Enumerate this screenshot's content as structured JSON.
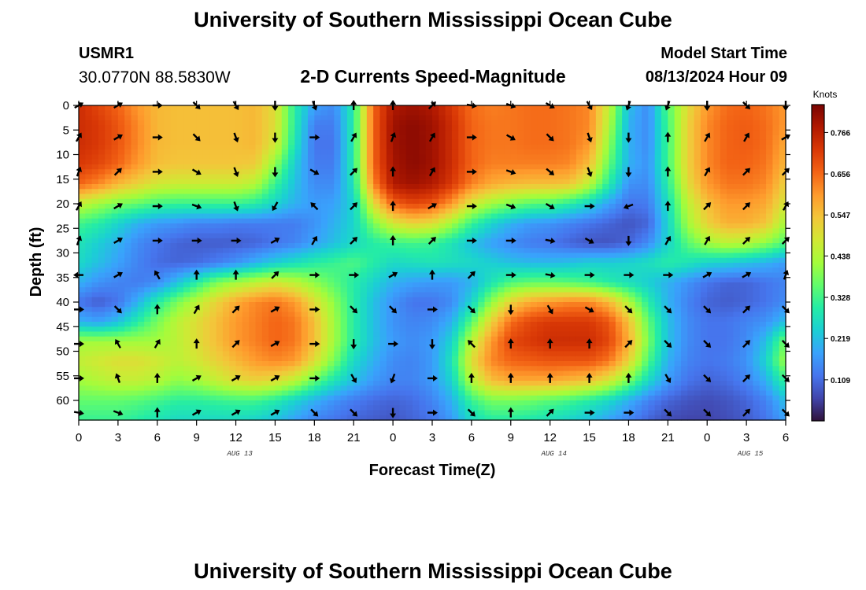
{
  "header": {
    "title": "University of Southern Mississippi Ocean Cube",
    "station_id": "USMR1",
    "coordinates": "30.0770N  88.5830W",
    "subtitle": "2-D Currents Speed-Magnitude",
    "model_start_label": "Model Start Time",
    "model_start_value": "08/13/2024 Hour 09"
  },
  "footer": {
    "title": "University of Southern Mississippi Ocean Cube"
  },
  "chart_data": {
    "type": "heatmap",
    "title": "2-D Currents Speed-Magnitude",
    "xlabel": "Forecast Time(Z)",
    "ylabel": "Depth (ft)",
    "x_range_hours": [
      0,
      54
    ],
    "y_range_ft": [
      0,
      64
    ],
    "x_ticks": [
      {
        "h": 0,
        "label": "0"
      },
      {
        "h": 3,
        "label": "3"
      },
      {
        "h": 6,
        "label": "6"
      },
      {
        "h": 9,
        "label": "9"
      },
      {
        "h": 12,
        "label": "12"
      },
      {
        "h": 15,
        "label": "15"
      },
      {
        "h": 18,
        "label": "18"
      },
      {
        "h": 21,
        "label": "21"
      },
      {
        "h": 24,
        "label": "0"
      },
      {
        "h": 27,
        "label": "3"
      },
      {
        "h": 30,
        "label": "6"
      },
      {
        "h": 33,
        "label": "9"
      },
      {
        "h": 36,
        "label": "12"
      },
      {
        "h": 39,
        "label": "15"
      },
      {
        "h": 42,
        "label": "18"
      },
      {
        "h": 45,
        "label": "21"
      },
      {
        "h": 48,
        "label": "0"
      },
      {
        "h": 51,
        "label": "3"
      },
      {
        "h": 54,
        "label": "6"
      }
    ],
    "y_ticks": [
      0,
      5,
      10,
      15,
      20,
      25,
      30,
      35,
      40,
      45,
      50,
      55,
      60
    ],
    "date_labels": [
      {
        "h": 12,
        "label": "AUG 13"
      },
      {
        "h": 36,
        "label": "AUG 14"
      },
      {
        "h": 51,
        "label": "AUG 15"
      }
    ],
    "colorbar": {
      "unit": "Knots",
      "range": [
        0.0,
        0.84
      ],
      "ticks": [
        0.766,
        0.656,
        0.547,
        0.438,
        0.328,
        0.219,
        0.109
      ],
      "colors": [
        "#30123b",
        "#4145ab",
        "#4675ed",
        "#39a2fc",
        "#1bcfd4",
        "#24eca6",
        "#61fc6c",
        "#a4fc3b",
        "#d1e834",
        "#f3c63a",
        "#fe9b2d",
        "#f36315",
        "#d93806",
        "#b11901",
        "#7a0402"
      ]
    },
    "speed_grid": {
      "hours": [
        0,
        1.5,
        3,
        4.5,
        6,
        7.5,
        9,
        10.5,
        12,
        13.5,
        15,
        16.5,
        18,
        19.5,
        21,
        22.5,
        24,
        25.5,
        27,
        28.5,
        30,
        31.5,
        33,
        34.5,
        36,
        37.5,
        39,
        40.5,
        42,
        43.5,
        45,
        46.5,
        48,
        49.5,
        51,
        52.5,
        54
      ],
      "depths_ft": [
        0,
        4,
        8,
        12,
        16,
        20,
        24,
        28,
        32,
        36,
        40,
        44,
        48,
        52,
        56,
        60,
        64
      ],
      "values_knots": [
        [
          0.74,
          0.7,
          0.66,
          0.6,
          0.56,
          0.55,
          0.55,
          0.55,
          0.55,
          0.56,
          0.5,
          0.3,
          0.18,
          0.15,
          0.3,
          0.66,
          0.78,
          0.8,
          0.78,
          0.72,
          0.65,
          0.63,
          0.64,
          0.65,
          0.65,
          0.64,
          0.62,
          0.46,
          0.22,
          0.15,
          0.35,
          0.5,
          0.6,
          0.65,
          0.66,
          0.64,
          0.6
        ],
        [
          0.74,
          0.72,
          0.68,
          0.62,
          0.56,
          0.55,
          0.55,
          0.55,
          0.55,
          0.56,
          0.5,
          0.3,
          0.13,
          0.13,
          0.3,
          0.66,
          0.8,
          0.82,
          0.8,
          0.74,
          0.66,
          0.64,
          0.64,
          0.65,
          0.65,
          0.64,
          0.62,
          0.44,
          0.2,
          0.15,
          0.33,
          0.52,
          0.62,
          0.66,
          0.67,
          0.65,
          0.6
        ],
        [
          0.74,
          0.72,
          0.68,
          0.62,
          0.56,
          0.55,
          0.55,
          0.55,
          0.55,
          0.56,
          0.48,
          0.28,
          0.12,
          0.12,
          0.3,
          0.66,
          0.8,
          0.82,
          0.8,
          0.74,
          0.66,
          0.64,
          0.64,
          0.65,
          0.65,
          0.64,
          0.6,
          0.4,
          0.2,
          0.15,
          0.33,
          0.52,
          0.62,
          0.66,
          0.67,
          0.65,
          0.58
        ],
        [
          0.72,
          0.7,
          0.66,
          0.6,
          0.55,
          0.54,
          0.54,
          0.54,
          0.54,
          0.53,
          0.4,
          0.24,
          0.13,
          0.13,
          0.3,
          0.66,
          0.79,
          0.82,
          0.8,
          0.74,
          0.66,
          0.63,
          0.63,
          0.63,
          0.63,
          0.62,
          0.55,
          0.36,
          0.2,
          0.16,
          0.33,
          0.52,
          0.62,
          0.66,
          0.66,
          0.64,
          0.56
        ],
        [
          0.66,
          0.62,
          0.56,
          0.52,
          0.48,
          0.47,
          0.47,
          0.47,
          0.47,
          0.44,
          0.32,
          0.22,
          0.15,
          0.15,
          0.28,
          0.62,
          0.78,
          0.8,
          0.78,
          0.72,
          0.63,
          0.58,
          0.56,
          0.55,
          0.55,
          0.54,
          0.45,
          0.3,
          0.16,
          0.15,
          0.3,
          0.5,
          0.6,
          0.64,
          0.64,
          0.62,
          0.52
        ],
        [
          0.46,
          0.42,
          0.38,
          0.36,
          0.33,
          0.32,
          0.32,
          0.32,
          0.32,
          0.3,
          0.25,
          0.2,
          0.17,
          0.18,
          0.25,
          0.5,
          0.66,
          0.7,
          0.68,
          0.6,
          0.48,
          0.42,
          0.38,
          0.35,
          0.34,
          0.3,
          0.25,
          0.18,
          0.12,
          0.13,
          0.27,
          0.45,
          0.55,
          0.6,
          0.6,
          0.58,
          0.48
        ],
        [
          0.33,
          0.3,
          0.25,
          0.2,
          0.17,
          0.16,
          0.14,
          0.14,
          0.13,
          0.13,
          0.13,
          0.13,
          0.16,
          0.2,
          0.25,
          0.38,
          0.48,
          0.52,
          0.5,
          0.42,
          0.32,
          0.25,
          0.2,
          0.17,
          0.16,
          0.14,
          0.12,
          0.1,
          0.08,
          0.1,
          0.25,
          0.42,
          0.52,
          0.57,
          0.57,
          0.54,
          0.42
        ],
        [
          0.28,
          0.24,
          0.2,
          0.15,
          0.12,
          0.1,
          0.09,
          0.09,
          0.09,
          0.1,
          0.12,
          0.14,
          0.18,
          0.22,
          0.26,
          0.3,
          0.32,
          0.33,
          0.32,
          0.28,
          0.22,
          0.18,
          0.15,
          0.13,
          0.12,
          0.1,
          0.08,
          0.08,
          0.1,
          0.15,
          0.25,
          0.35,
          0.42,
          0.45,
          0.44,
          0.4,
          0.34
        ],
        [
          0.26,
          0.22,
          0.18,
          0.14,
          0.11,
          0.1,
          0.11,
          0.13,
          0.16,
          0.2,
          0.24,
          0.27,
          0.3,
          0.32,
          0.34,
          0.3,
          0.26,
          0.27,
          0.28,
          0.27,
          0.26,
          0.24,
          0.22,
          0.21,
          0.21,
          0.22,
          0.24,
          0.24,
          0.25,
          0.27,
          0.3,
          0.28,
          0.25,
          0.24,
          0.22,
          0.2,
          0.17
        ],
        [
          0.2,
          0.16,
          0.14,
          0.13,
          0.15,
          0.22,
          0.3,
          0.38,
          0.42,
          0.45,
          0.48,
          0.45,
          0.4,
          0.35,
          0.3,
          0.25,
          0.2,
          0.18,
          0.17,
          0.17,
          0.2,
          0.28,
          0.34,
          0.36,
          0.36,
          0.35,
          0.33,
          0.3,
          0.27,
          0.24,
          0.2,
          0.16,
          0.12,
          0.1,
          0.1,
          0.12,
          0.14
        ],
        [
          0.12,
          0.09,
          0.12,
          0.2,
          0.3,
          0.38,
          0.45,
          0.52,
          0.58,
          0.62,
          0.64,
          0.6,
          0.5,
          0.4,
          0.3,
          0.22,
          0.16,
          0.12,
          0.12,
          0.15,
          0.25,
          0.4,
          0.52,
          0.58,
          0.6,
          0.62,
          0.62,
          0.56,
          0.44,
          0.3,
          0.2,
          0.14,
          0.1,
          0.09,
          0.1,
          0.12,
          0.15
        ],
        [
          0.2,
          0.18,
          0.22,
          0.3,
          0.38,
          0.45,
          0.5,
          0.55,
          0.6,
          0.63,
          0.66,
          0.64,
          0.55,
          0.42,
          0.3,
          0.22,
          0.16,
          0.14,
          0.15,
          0.2,
          0.35,
          0.52,
          0.65,
          0.7,
          0.72,
          0.72,
          0.72,
          0.68,
          0.55,
          0.36,
          0.22,
          0.15,
          0.12,
          0.12,
          0.14,
          0.16,
          0.22
        ],
        [
          0.42,
          0.42,
          0.42,
          0.42,
          0.42,
          0.45,
          0.5,
          0.55,
          0.6,
          0.63,
          0.66,
          0.64,
          0.55,
          0.42,
          0.3,
          0.22,
          0.17,
          0.15,
          0.17,
          0.25,
          0.45,
          0.6,
          0.7,
          0.72,
          0.74,
          0.74,
          0.74,
          0.7,
          0.58,
          0.38,
          0.22,
          0.15,
          0.12,
          0.12,
          0.15,
          0.22,
          0.38
        ],
        [
          0.46,
          0.48,
          0.5,
          0.5,
          0.48,
          0.45,
          0.48,
          0.52,
          0.56,
          0.6,
          0.62,
          0.6,
          0.5,
          0.38,
          0.26,
          0.2,
          0.15,
          0.14,
          0.17,
          0.28,
          0.5,
          0.62,
          0.66,
          0.67,
          0.68,
          0.68,
          0.68,
          0.64,
          0.52,
          0.34,
          0.2,
          0.14,
          0.12,
          0.13,
          0.16,
          0.25,
          0.42
        ],
        [
          0.42,
          0.44,
          0.46,
          0.46,
          0.44,
          0.4,
          0.42,
          0.46,
          0.5,
          0.52,
          0.5,
          0.45,
          0.36,
          0.28,
          0.22,
          0.17,
          0.14,
          0.14,
          0.17,
          0.25,
          0.44,
          0.55,
          0.58,
          0.58,
          0.58,
          0.56,
          0.54,
          0.48,
          0.38,
          0.26,
          0.17,
          0.12,
          0.1,
          0.11,
          0.14,
          0.2,
          0.32
        ],
        [
          0.36,
          0.36,
          0.36,
          0.35,
          0.33,
          0.31,
          0.31,
          0.32,
          0.33,
          0.33,
          0.3,
          0.25,
          0.2,
          0.16,
          0.13,
          0.11,
          0.1,
          0.11,
          0.14,
          0.2,
          0.32,
          0.38,
          0.38,
          0.37,
          0.35,
          0.33,
          0.3,
          0.26,
          0.2,
          0.14,
          0.1,
          0.08,
          0.07,
          0.08,
          0.1,
          0.14,
          0.22
        ],
        [
          0.32,
          0.32,
          0.32,
          0.3,
          0.28,
          0.26,
          0.26,
          0.26,
          0.26,
          0.25,
          0.22,
          0.18,
          0.14,
          0.12,
          0.1,
          0.09,
          0.08,
          0.1,
          0.12,
          0.17,
          0.26,
          0.3,
          0.3,
          0.29,
          0.27,
          0.25,
          0.22,
          0.18,
          0.14,
          0.1,
          0.07,
          0.06,
          0.06,
          0.07,
          0.09,
          0.12,
          0.18
        ]
      ]
    },
    "arrows": {
      "hours": [
        0,
        3,
        6,
        9,
        12,
        15,
        18,
        21,
        24,
        27,
        30,
        33,
        36,
        39,
        42,
        45,
        48,
        51,
        54
      ],
      "depths_ft": [
        0,
        6.5,
        13.5,
        20.5,
        27.5,
        34.5,
        41.5,
        48.5,
        55.5,
        62.5
      ],
      "direction_deg": [
        [
          60,
          60,
          90,
          135,
          150,
          180,
          160,
          0,
          0,
          45,
          100,
          110,
          120,
          150,
          200,
          200,
          180,
          135,
          180
        ],
        [
          30,
          60,
          90,
          135,
          160,
          180,
          90,
          30,
          20,
          30,
          90,
          120,
          135,
          160,
          180,
          0,
          30,
          30,
          60
        ],
        [
          20,
          45,
          90,
          120,
          160,
          180,
          120,
          45,
          0,
          30,
          90,
          110,
          130,
          160,
          180,
          0,
          30,
          45,
          45
        ],
        [
          30,
          60,
          90,
          110,
          160,
          210,
          315,
          45,
          0,
          60,
          90,
          110,
          120,
          90,
          250,
          0,
          45,
          45,
          30
        ],
        [
          20,
          60,
          90,
          90,
          90,
          60,
          30,
          45,
          0,
          45,
          90,
          90,
          100,
          120,
          180,
          30,
          30,
          45,
          45
        ],
        [
          270,
          60,
          330,
          0,
          0,
          45,
          90,
          90,
          60,
          0,
          45,
          90,
          100,
          90,
          90,
          90,
          60,
          60,
          20
        ],
        [
          90,
          135,
          0,
          30,
          45,
          60,
          90,
          135,
          135,
          90,
          135,
          180,
          150,
          120,
          135,
          135,
          135,
          45,
          135
        ],
        [
          90,
          330,
          30,
          0,
          45,
          60,
          90,
          180,
          90,
          180,
          315,
          0,
          0,
          0,
          45,
          135,
          135,
          45,
          135
        ],
        [
          90,
          340,
          0,
          60,
          60,
          60,
          90,
          150,
          200,
          90,
          0,
          0,
          0,
          0,
          0,
          150,
          135,
          45,
          135
        ],
        [
          100,
          110,
          0,
          60,
          60,
          60,
          135,
          135,
          180,
          90,
          135,
          0,
          45,
          90,
          90,
          135,
          135,
          45,
          135
        ]
      ]
    }
  }
}
